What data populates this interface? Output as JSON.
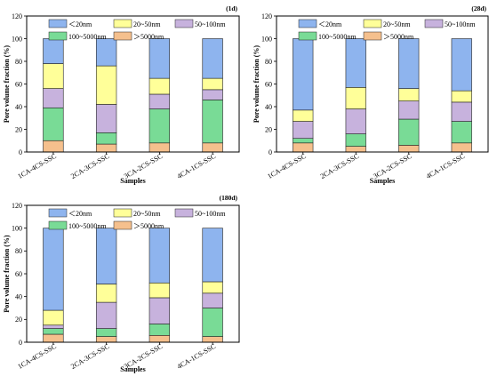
{
  "colors": {
    "lt20": "#8eb4ee",
    "20to50": "#ffff99",
    "50to100": "#c7b2dd",
    "100to5000": "#79db96",
    "gt5000": "#f5c08d"
  },
  "chart_data": [
    {
      "type": "bar",
      "stacked": true,
      "tag": "(1d)",
      "xlabel": "Samples",
      "ylabel": "Pore volume fraction (%)",
      "ylim": [
        0,
        120
      ],
      "yticks": [
        "0",
        "20",
        "40",
        "60",
        "80",
        "100",
        "120"
      ],
      "categories": [
        "1CA-4CS-SSC",
        "2CA-3CS-SSC",
        "3CA-2CS-SSC",
        "4CA-1CS-SSC"
      ],
      "legend": [
        "＜20nm",
        "20~50nm",
        "50~100nm",
        "100~5000nm",
        "＞5000nm"
      ],
      "series": [
        {
          "name": "＞5000nm",
          "color_key": "gt5000",
          "values": [
            10,
            7,
            8,
            8
          ]
        },
        {
          "name": "100~5000nm",
          "color_key": "100to5000",
          "values": [
            29,
            10,
            30,
            38
          ]
        },
        {
          "name": "50~100nm",
          "color_key": "50to100",
          "values": [
            17,
            25,
            13,
            9
          ]
        },
        {
          "name": "20~50nm",
          "color_key": "20to50",
          "values": [
            22,
            34,
            14,
            10
          ]
        },
        {
          "name": "＜20nm",
          "color_key": "lt20",
          "values": [
            22,
            24,
            35,
            35
          ]
        }
      ]
    },
    {
      "type": "bar",
      "stacked": true,
      "tag": "(28d)",
      "xlabel": "Samples",
      "ylabel": "Pore volume fraction (%)",
      "ylim": [
        0,
        120
      ],
      "yticks": [
        "0",
        "20",
        "40",
        "60",
        "80",
        "100",
        "120"
      ],
      "categories": [
        "1CA-4CS-SSC",
        "2CA-3CS-SSC",
        "3CA-2CS-SSC",
        "4CA-1CS-SSC"
      ],
      "legend": [
        "＜20nm",
        "20~50nm",
        "50~100nm",
        "100~5000nm",
        "＞5000nm"
      ],
      "series": [
        {
          "name": "＞5000nm",
          "color_key": "gt5000",
          "values": [
            8,
            5,
            6,
            8
          ]
        },
        {
          "name": "100~5000nm",
          "color_key": "100to5000",
          "values": [
            4,
            11,
            23,
            19
          ]
        },
        {
          "name": "50~100nm",
          "color_key": "50to100",
          "values": [
            15,
            22,
            16,
            17
          ]
        },
        {
          "name": "20~50nm",
          "color_key": "20to50",
          "values": [
            10,
            19,
            11,
            10
          ]
        },
        {
          "name": "＜20nm",
          "color_key": "lt20",
          "values": [
            63,
            43,
            44,
            46
          ]
        }
      ]
    },
    {
      "type": "bar",
      "stacked": true,
      "tag": "(180d)",
      "xlabel": "Samples",
      "ylabel": "Pore volume fraction (%)",
      "ylim": [
        0,
        120
      ],
      "yticks": [
        "0",
        "20",
        "40",
        "60",
        "80",
        "100",
        "120"
      ],
      "categories": [
        "1CA-4CS-SSC",
        "2CA-3CS-SSC",
        "3CA-2CS-SSC",
        "4CA-1CS-SSC"
      ],
      "legend": [
        "＜20nm",
        "20~50nm",
        "50~100nm",
        "100~5000nm",
        "＞5000nm"
      ],
      "series": [
        {
          "name": "＞5000nm",
          "color_key": "gt5000",
          "values": [
            7,
            5,
            6,
            5
          ]
        },
        {
          "name": "100~5000nm",
          "color_key": "100to5000",
          "values": [
            5,
            7,
            10,
            25
          ]
        },
        {
          "name": "50~100nm",
          "color_key": "50to100",
          "values": [
            3,
            23,
            23,
            13
          ]
        },
        {
          "name": "20~50nm",
          "color_key": "20to50",
          "values": [
            13,
            16,
            13,
            10
          ]
        },
        {
          "name": "＜20nm",
          "color_key": "lt20",
          "values": [
            72,
            49,
            48,
            47
          ]
        }
      ]
    }
  ]
}
